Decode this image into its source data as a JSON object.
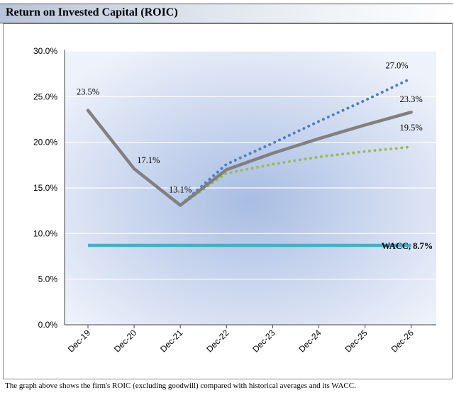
{
  "header": {
    "title": "Return on Invested Capital (ROIC)"
  },
  "caption": "The graph above shows the firm's ROIC (excluding goodwill) compared with historical averages and its WACC.",
  "chart_data": {
    "type": "line",
    "title": "",
    "xlabel": "",
    "ylabel": "",
    "categories": [
      "Dec-19",
      "Dec-20",
      "Dec-21",
      "Dec-22",
      "Dec-23",
      "Dec-24",
      "Dec-25",
      "Dec-26"
    ],
    "ylim": [
      0,
      30
    ],
    "yticks": [
      "0.0%",
      "5.0%",
      "10.0%",
      "15.0%",
      "20.0%",
      "25.0%",
      "30.0%"
    ],
    "grid": true,
    "legend": "none",
    "series": [
      {
        "key": "optimistic",
        "values": [
          23.5,
          17.1,
          13.1,
          17.6,
          19.9,
          22.3,
          24.6,
          27.0
        ],
        "color": "#4f81bd",
        "style": "dotted"
      },
      {
        "key": "pessimistic",
        "values": [
          23.5,
          17.1,
          13.1,
          16.6,
          17.6,
          18.4,
          19.0,
          19.5
        ],
        "color": "#9bbb59",
        "style": "dotted"
      },
      {
        "key": "base",
        "values": [
          23.5,
          17.1,
          13.1,
          17.0,
          18.8,
          20.4,
          21.9,
          23.3
        ],
        "color": "#808080",
        "style": "solid"
      },
      {
        "key": "wacc",
        "values": [
          8.7,
          8.7,
          8.7,
          8.7,
          8.7,
          8.7,
          8.7,
          8.7
        ],
        "color": "#4bacc6",
        "style": "solid"
      }
    ],
    "annotations": [
      {
        "text": "23.5%",
        "x": "Dec-19",
        "y": 23.5
      },
      {
        "text": "17.1%",
        "x": "Dec-20",
        "y": 17.1
      },
      {
        "text": "13.1%",
        "x": "Dec-21",
        "y": 13.1
      },
      {
        "text": "27.0%",
        "x": "Dec-26",
        "y": 27.0
      },
      {
        "text": "23.3%",
        "x": "Dec-26",
        "y": 23.3
      },
      {
        "text": "19.5%",
        "x": "Dec-26",
        "y": 19.5
      },
      {
        "text": "WACC, 8.7%",
        "x": "Dec-26",
        "y": 8.7
      }
    ]
  }
}
